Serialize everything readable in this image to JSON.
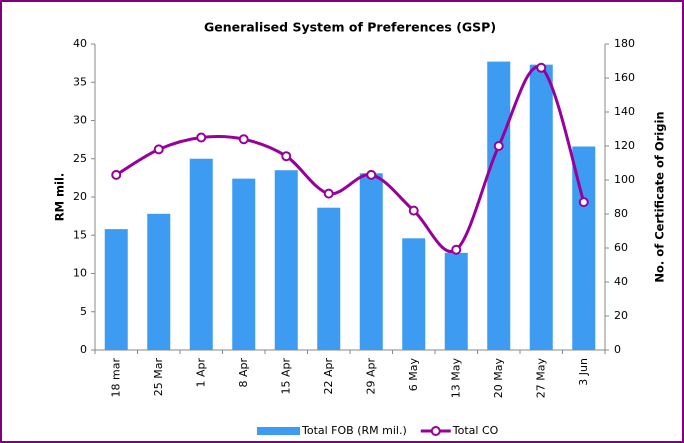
{
  "chart_data": {
    "type": "bar",
    "title": "Generalised System of Preferences (GSP)",
    "ylabel": "RM mil.",
    "y2label": "No. of Certificate of Origin",
    "categories": [
      "18 mar",
      "25 Mar",
      "1 Apr",
      "8 Apr",
      "15 Apr",
      "22 Apr",
      "29 Apr",
      "6 May",
      "13 May",
      "20 May",
      "27 May",
      "3 Jun"
    ],
    "series": [
      {
        "name": "Total FOB (RM mil.)",
        "type": "bar",
        "color": "#3d9cf2",
        "axis": "y",
        "values": [
          15.8,
          17.8,
          25.0,
          22.4,
          23.5,
          18.6,
          23.1,
          14.6,
          12.7,
          37.7,
          37.3,
          26.6
        ]
      },
      {
        "name": "Total CO",
        "type": "line",
        "color": "#990099",
        "axis": "y2",
        "values": [
          103,
          118,
          125,
          124,
          114,
          92,
          103,
          82,
          59,
          120,
          166,
          87
        ]
      }
    ],
    "ylim": [
      0,
      40
    ],
    "yticks": [
      0,
      5,
      10,
      15,
      20,
      25,
      30,
      35,
      40
    ],
    "y2lim": [
      0,
      180
    ],
    "y2ticks": [
      0,
      20,
      40,
      60,
      80,
      100,
      120,
      140,
      160,
      180
    ],
    "legend": "bottom"
  }
}
